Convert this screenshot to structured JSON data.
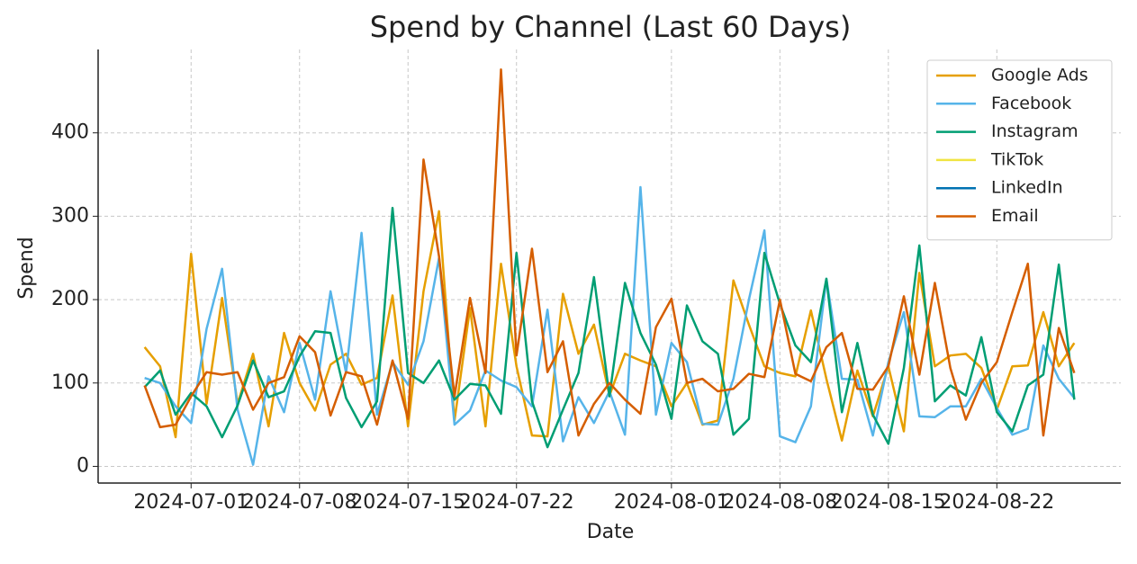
{
  "chart_data": {
    "type": "line",
    "title": "Spend by Channel (Last 60 Days)",
    "x_label": "Date",
    "y_label": "Spend",
    "x": [
      "2024-06-28",
      "2024-06-29",
      "2024-06-30",
      "2024-07-01",
      "2024-07-02",
      "2024-07-03",
      "2024-07-04",
      "2024-07-05",
      "2024-07-06",
      "2024-07-07",
      "2024-07-08",
      "2024-07-09",
      "2024-07-10",
      "2024-07-11",
      "2024-07-12",
      "2024-07-13",
      "2024-07-14",
      "2024-07-15",
      "2024-07-16",
      "2024-07-17",
      "2024-07-18",
      "2024-07-19",
      "2024-07-20",
      "2024-07-21",
      "2024-07-22",
      "2024-07-23",
      "2024-07-24",
      "2024-07-25",
      "2024-07-26",
      "2024-07-27",
      "2024-07-28",
      "2024-07-29",
      "2024-07-30",
      "2024-07-31",
      "2024-08-01",
      "2024-08-02",
      "2024-08-03",
      "2024-08-04",
      "2024-08-05",
      "2024-08-06",
      "2024-08-07",
      "2024-08-08",
      "2024-08-09",
      "2024-08-10",
      "2024-08-11",
      "2024-08-12",
      "2024-08-13",
      "2024-08-14",
      "2024-08-15",
      "2024-08-16",
      "2024-08-17",
      "2024-08-18",
      "2024-08-19",
      "2024-08-20",
      "2024-08-21",
      "2024-08-22",
      "2024-08-23",
      "2024-08-24",
      "2024-08-25",
      "2024-08-26",
      "2024-08-27"
    ],
    "series": [
      {
        "name": "Google Ads",
        "color": "#E69F00",
        "values": [
          143,
          120,
          35,
          255,
          75,
          202,
          75,
          135,
          48,
          160,
          100,
          67,
          122,
          135,
          98,
          106,
          205,
          48,
          210,
          306,
          55,
          190,
          48,
          243,
          120,
          37,
          36,
          207,
          135,
          170,
          85,
          135,
          127,
          120,
          72,
          100,
          50,
          55,
          223,
          170,
          120,
          112,
          108,
          187,
          105,
          31,
          115,
          60,
          120,
          42,
          232,
          120,
          133,
          135,
          118,
          68,
          120,
          121,
          185,
          120,
          148
        ]
      },
      {
        "name": "Facebook",
        "color": "#56B4E9",
        "values": [
          106,
          100,
          72,
          52,
          165,
          237,
          68,
          2,
          108,
          65,
          148,
          80,
          210,
          112,
          280,
          62,
          125,
          98,
          150,
          250,
          50,
          67,
          115,
          103,
          95,
          72,
          188,
          30,
          83,
          52,
          90,
          38,
          335,
          62,
          148,
          125,
          51,
          50,
          105,
          200,
          283,
          36,
          29,
          72,
          225,
          105,
          104,
          37,
          125,
          185,
          60,
          59,
          72,
          72,
          105,
          70,
          38,
          45,
          145,
          105,
          82
        ]
      },
      {
        "name": "Instagram",
        "color": "#009E73",
        "values": [
          95,
          115,
          62,
          88,
          72,
          35,
          73,
          127,
          83,
          90,
          132,
          162,
          160,
          82,
          47,
          78,
          310,
          112,
          100,
          127,
          80,
          99,
          97,
          63,
          256,
          78,
          23,
          68,
          112,
          227,
          84,
          220,
          160,
          122,
          57,
          193,
          150,
          135,
          38,
          57,
          256,
          195,
          145,
          125,
          225,
          65,
          148,
          62,
          27,
          118,
          265,
          78,
          97,
          85,
          155,
          65,
          42,
          97,
          110,
          242,
          80
        ]
      },
      {
        "name": "TikTok",
        "color": "#F0E442",
        "values": [
          null,
          null,
          null,
          null,
          null,
          null,
          null,
          null,
          null,
          null,
          null,
          null,
          null,
          null,
          null,
          null,
          null,
          null,
          null,
          null,
          null,
          null,
          null,
          null,
          null,
          null,
          null,
          null,
          null,
          null,
          null,
          null,
          null,
          null,
          null,
          null,
          null,
          null,
          null,
          null,
          null,
          null,
          null,
          null,
          null,
          null,
          null,
          null,
          null,
          null,
          null,
          null,
          null,
          null,
          null,
          null,
          null,
          null,
          null,
          null,
          null
        ]
      },
      {
        "name": "LinkedIn",
        "color": "#0072B2",
        "values": [
          null,
          null,
          null,
          null,
          null,
          null,
          null,
          null,
          null,
          null,
          null,
          null,
          null,
          null,
          null,
          null,
          null,
          null,
          null,
          null,
          null,
          null,
          null,
          null,
          null,
          null,
          null,
          null,
          null,
          null,
          null,
          null,
          null,
          null,
          null,
          null,
          null,
          null,
          null,
          null,
          null,
          null,
          null,
          null,
          null,
          null,
          null,
          null,
          null,
          null,
          null,
          null,
          null,
          null,
          null,
          null,
          null,
          null,
          null,
          null,
          null
        ]
      },
      {
        "name": "Email",
        "color": "#D55E00",
        "values": [
          97,
          47,
          50,
          84,
          113,
          110,
          113,
          68,
          100,
          107,
          156,
          137,
          61,
          113,
          108,
          50,
          127,
          57,
          368,
          252,
          84,
          202,
          112,
          476,
          133,
          261,
          113,
          150,
          37,
          75,
          100,
          80,
          63,
          167,
          201,
          100,
          105,
          90,
          93,
          111,
          107,
          200,
          111,
          102,
          143,
          160,
          93,
          92,
          120,
          204,
          110,
          220,
          118,
          56,
          100,
          125,
          185,
          243,
          37,
          166,
          112
        ]
      }
    ],
    "xlim": [
      "2024-06-25",
      "2024-08-30"
    ],
    "xticks": [
      "2024-07-01",
      "2024-07-08",
      "2024-07-15",
      "2024-07-22",
      "2024-08-01",
      "2024-08-08",
      "2024-08-15",
      "2024-08-22"
    ],
    "ylim": [
      -20,
      500
    ],
    "yticks": [
      0,
      100,
      200,
      300,
      400
    ],
    "grid": true,
    "legend": "upper right"
  }
}
